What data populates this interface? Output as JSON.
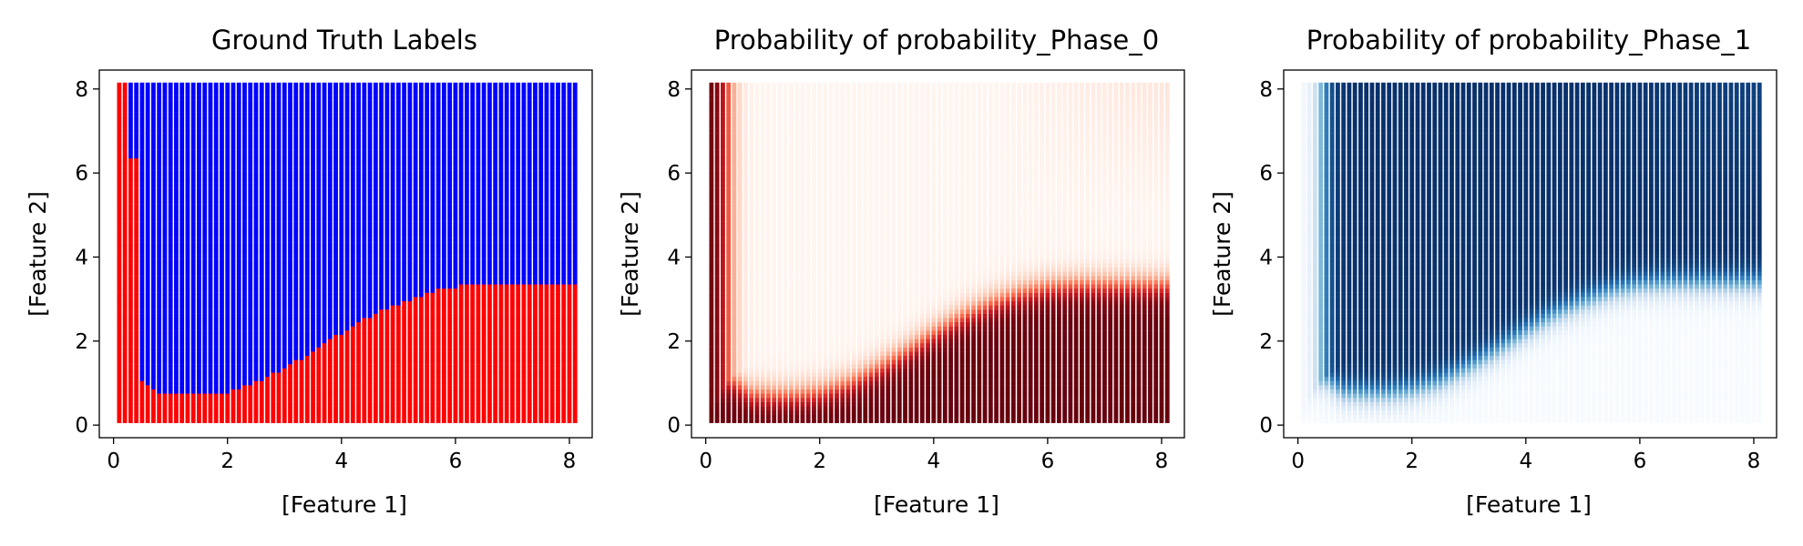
{
  "chart_data": [
    {
      "type": "scatter",
      "title": "Ground Truth Labels",
      "xlabel": "[Feature 1]",
      "ylabel": "[Feature 2]",
      "xlim": [
        -0.25,
        8.4
      ],
      "ylim": [
        -0.3,
        8.45
      ],
      "xticks": [
        "0",
        "2",
        "4",
        "6",
        "8"
      ],
      "yticks": [
        "0",
        "2",
        "4",
        "6",
        "8"
      ],
      "grid": false,
      "legend": "none",
      "encoding": "class",
      "class_colors": {
        "Phase_0": "#ff0000",
        "Phase_1": "#0000ff"
      },
      "grid_points": {
        "start": 0.1,
        "stop": 8.1,
        "count": 81
      },
      "boundary_curve": {
        "x": [
          0.45,
          0.8,
          1.2,
          1.6,
          2.0,
          2.5,
          3.0,
          3.5,
          4.0,
          4.5,
          5.0,
          5.5,
          6.0,
          6.5,
          7.0,
          8.1
        ],
        "y": [
          1.1,
          0.75,
          0.72,
          0.72,
          0.8,
          1.0,
          1.35,
          1.75,
          2.2,
          2.6,
          2.9,
          3.15,
          3.3,
          3.35,
          3.35,
          3.35
        ]
      },
      "left_strip": {
        "x_max": [
          0.3,
          0.45
        ],
        "note_y_split": 6.3
      }
    },
    {
      "type": "scatter",
      "title": "Probability of probability_Phase_0",
      "xlabel": "[Feature 1]",
      "ylabel": "[Feature 2]",
      "xlim": [
        -0.25,
        8.4
      ],
      "ylim": [
        -0.3,
        8.45
      ],
      "xticks": [
        "0",
        "2",
        "4",
        "6",
        "8"
      ],
      "yticks": [
        "0",
        "2",
        "4",
        "6",
        "8"
      ],
      "grid": false,
      "legend": "none",
      "encoding": "probability",
      "colormap": "Reds",
      "value_range": [
        0,
        1
      ]
    },
    {
      "type": "scatter",
      "title": "Probability of probability_Phase_1",
      "xlabel": "[Feature 1]",
      "ylabel": "[Feature 2]",
      "xlim": [
        -0.25,
        8.4
      ],
      "ylim": [
        -0.3,
        8.45
      ],
      "xticks": [
        "0",
        "2",
        "4",
        "6",
        "8"
      ],
      "yticks": [
        "0",
        "2",
        "4",
        "6",
        "8"
      ],
      "grid": false,
      "legend": "none",
      "encoding": "probability",
      "colormap": "Blues",
      "value_range": [
        0,
        1
      ]
    }
  ]
}
